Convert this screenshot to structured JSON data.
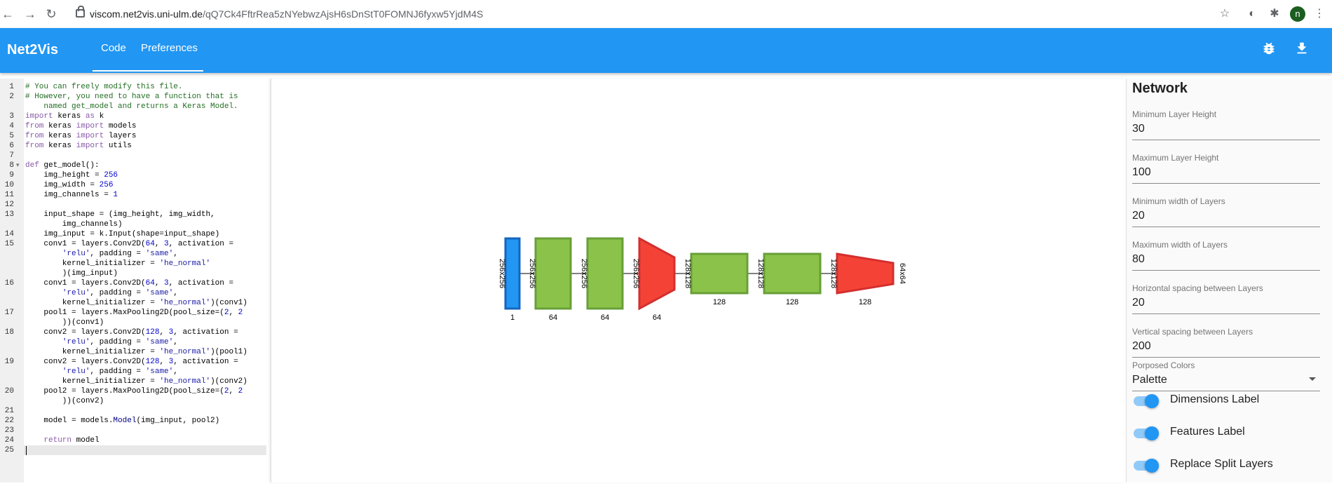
{
  "browser": {
    "url_host": "viscom.net2vis.uni-ulm.de",
    "url_path": "/qQ7Ck4FftrRea5zNYebwzAjsH6sDnStT0FOMNJ6fyxw5YjdM4S",
    "avatar_letter": "n"
  },
  "app": {
    "title": "Net2Vis",
    "tabs": [
      "Code",
      "Preferences"
    ],
    "active_tab": "Code",
    "accent_color": "#2196f3"
  },
  "editor": {
    "cursor_line": 25,
    "lines": [
      {
        "n": "1",
        "text": "# You can freely modify this file."
      },
      {
        "n": "2",
        "text": "# However, you need to have a function that is"
      },
      {
        "n": "",
        "text": "    named get_model and returns a Keras Model."
      },
      {
        "n": "3",
        "text": "import keras as k"
      },
      {
        "n": "4",
        "text": "from keras import models"
      },
      {
        "n": "5",
        "text": "from keras import layers"
      },
      {
        "n": "6",
        "text": "from keras import utils"
      },
      {
        "n": "7",
        "text": ""
      },
      {
        "n": "8",
        "text": "def get_model():"
      },
      {
        "n": "9",
        "text": "    img_height = 256"
      },
      {
        "n": "10",
        "text": "    img_width = 256"
      },
      {
        "n": "11",
        "text": "    img_channels = 1"
      },
      {
        "n": "12",
        "text": ""
      },
      {
        "n": "13",
        "text": "    input_shape = (img_height, img_width,"
      },
      {
        "n": "",
        "text": "        img_channels)"
      },
      {
        "n": "14",
        "text": "    img_input = k.Input(shape=input_shape)"
      },
      {
        "n": "15",
        "text": "    conv1 = layers.Conv2D(64, 3, activation ="
      },
      {
        "n": "",
        "text": "        'relu', padding = 'same',"
      },
      {
        "n": "",
        "text": "        kernel_initializer = 'he_normal'"
      },
      {
        "n": "",
        "text": "        )(img_input)"
      },
      {
        "n": "16",
        "text": "    conv1 = layers.Conv2D(64, 3, activation ="
      },
      {
        "n": "",
        "text": "        'relu', padding = 'same',"
      },
      {
        "n": "",
        "text": "        kernel_initializer = 'he_normal')(conv1)"
      },
      {
        "n": "17",
        "text": "    pool1 = layers.MaxPooling2D(pool_size=(2, 2"
      },
      {
        "n": "",
        "text": "        ))(conv1)"
      },
      {
        "n": "18",
        "text": "    conv2 = layers.Conv2D(128, 3, activation ="
      },
      {
        "n": "",
        "text": "        'relu', padding = 'same',"
      },
      {
        "n": "",
        "text": "        kernel_initializer = 'he_normal')(pool1)"
      },
      {
        "n": "19",
        "text": "    conv2 = layers.Conv2D(128, 3, activation ="
      },
      {
        "n": "",
        "text": "        'relu', padding = 'same',"
      },
      {
        "n": "",
        "text": "        kernel_initializer = 'he_normal')(conv2)"
      },
      {
        "n": "20",
        "text": "    pool2 = layers.MaxPooling2D(pool_size=(2, 2"
      },
      {
        "n": "",
        "text": "        ))(conv2)"
      },
      {
        "n": "21",
        "text": ""
      },
      {
        "n": "22",
        "text": "    model = models.Model(img_input, pool2)"
      },
      {
        "n": "23",
        "text": ""
      },
      {
        "n": "24",
        "text": "    return model"
      },
      {
        "n": "25",
        "text": ""
      }
    ]
  },
  "network": {
    "colors": {
      "input": "#2196f3",
      "conv": "#8bc34a",
      "pool": "#f44336"
    },
    "layers": [
      {
        "type": "input",
        "dim_label": "256x256",
        "feature_label": "1"
      },
      {
        "type": "conv",
        "dim_label": "256x256",
        "feature_label": "64"
      },
      {
        "type": "conv",
        "dim_label": "256x256",
        "feature_label": "64"
      },
      {
        "type": "pool",
        "dim_label": "256x256",
        "feature_label": "64"
      },
      {
        "type": "conv",
        "dim_label": "128x128",
        "feature_label": "128"
      },
      {
        "type": "conv",
        "dim_label": "128x128",
        "feature_label": "128"
      },
      {
        "type": "pool",
        "dim_label": "128x128",
        "feature_label": "128"
      }
    ],
    "output_dim_label": "64x64"
  },
  "settings": {
    "title": "Network",
    "fields": [
      {
        "label": "Minimum Layer Height",
        "value": "30"
      },
      {
        "label": "Maximum Layer Height",
        "value": "100"
      },
      {
        "label": "Minimum width of Layers",
        "value": "20"
      },
      {
        "label": "Maximum width of Layers",
        "value": "80"
      },
      {
        "label": "Horizontal spacing between Layers",
        "value": "20"
      },
      {
        "label": "Vertical spacing between Layers",
        "value": "200"
      }
    ],
    "colors_select": {
      "label": "Porposed Colors",
      "value": "Palette"
    },
    "toggles": [
      {
        "label": "Dimensions Label",
        "on": true
      },
      {
        "label": "Features Label",
        "on": true
      },
      {
        "label": "Replace Split Layers",
        "on": true
      }
    ]
  }
}
